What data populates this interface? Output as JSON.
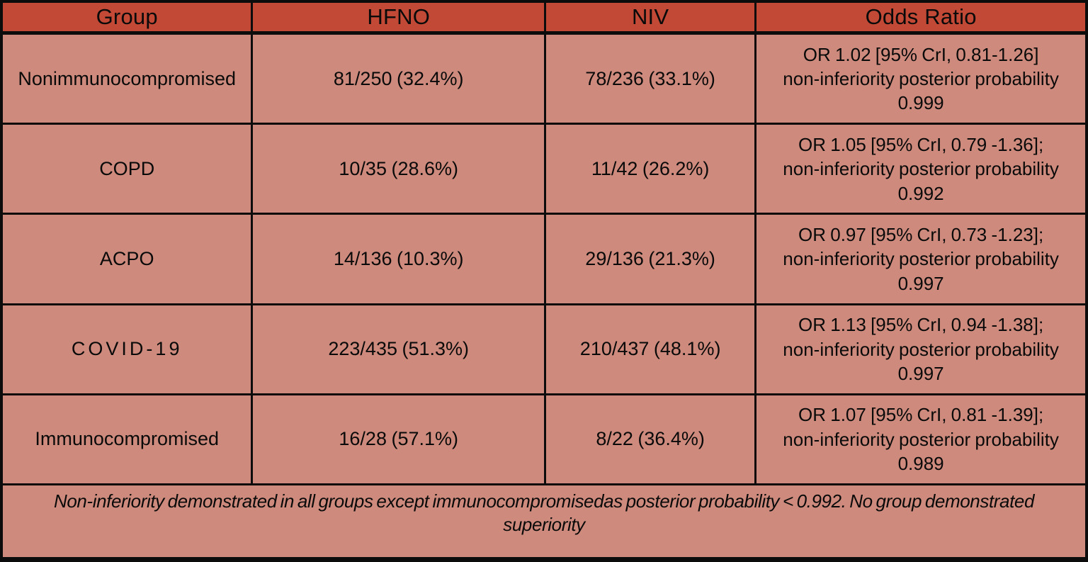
{
  "colors": {
    "header_bg": "#c14936",
    "row_bg": "#ce8b7d",
    "border": "#0c0c0c",
    "text": "#0a0a0a"
  },
  "table": {
    "headers": [
      "Group",
      "HFNO",
      "NIV",
      "Odds Ratio"
    ],
    "rows": [
      {
        "group": "Nonimmunocompromised",
        "group_letter_spaced": false,
        "hfno": "81/250 (32.4%)",
        "niv": "78/236 (33.1%)",
        "odds_line1": "OR 1.02 [95% CrI, 0.81-1.26]",
        "odds_line2": "non-inferiority posterior probability",
        "odds_line3": "0.999"
      },
      {
        "group": "COPD",
        "group_letter_spaced": false,
        "hfno": "10/35 (28.6%)",
        "niv": "11/42 (26.2%)",
        "odds_line1": "OR 1.05 [95% CrI, 0.79 -1.36];",
        "odds_line2": "non-inferiority posterior probability",
        "odds_line3": "0.992"
      },
      {
        "group": "ACPO",
        "group_letter_spaced": false,
        "hfno": "14/136 (10.3%)",
        "niv": "29/136 (21.3%)",
        "odds_line1": "OR 0.97 [95% CrI, 0.73 -1.23];",
        "odds_line2": "non-inferiority posterior probability",
        "odds_line3": "0.997"
      },
      {
        "group": "COVID-19",
        "group_letter_spaced": true,
        "hfno": "223/435 (51.3%)",
        "niv": "210/437 (48.1%)",
        "odds_line1": "OR 1.13 [95% CrI, 0.94 -1.38];",
        "odds_line2": "non-inferiority posterior probability",
        "odds_line3": "0.997"
      },
      {
        "group": "Immunocompromised",
        "group_letter_spaced": false,
        "hfno": "16/28 (57.1%)",
        "niv": "8/22 (36.4%)",
        "odds_line1": "OR 1.07 [95% CrI, 0.81 -1.39];",
        "odds_line2": "non-inferiority posterior probability",
        "odds_line3": "0.989"
      }
    ],
    "footnote": "Non-inferiority demonstrated in all groups except immunocompromisedas posterior probability < 0.992. No group demonstrated superiority"
  }
}
